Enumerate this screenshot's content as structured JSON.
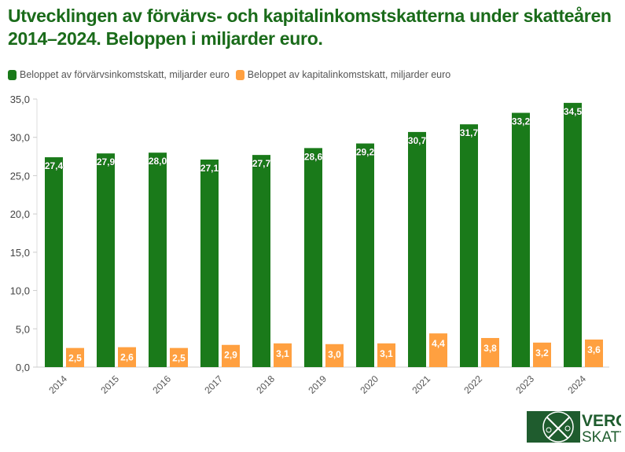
{
  "chart_data": {
    "type": "bar",
    "title": "Utvecklingen av förvärvs- och kapitalinkomstskatterna under skatteåren 2014–2024. Beloppen i miljarder euro.",
    "categories": [
      "2014",
      "2015",
      "2016",
      "2017",
      "2018",
      "2019",
      "2020",
      "2021",
      "2022",
      "2023",
      "2024"
    ],
    "series": [
      {
        "name": "Beloppet av förvärvsinkomstskatt, miljarder euro",
        "color": "#1a7a1a",
        "values": [
          27.4,
          27.9,
          28.0,
          27.1,
          27.7,
          28.6,
          29.2,
          30.7,
          31.7,
          33.2,
          34.5
        ]
      },
      {
        "name": "Beloppet av kapitalinkomstskatt, miljarder euro",
        "color": "#ffa040",
        "values": [
          2.5,
          2.6,
          2.5,
          2.9,
          3.1,
          3.0,
          3.1,
          4.4,
          3.8,
          3.2,
          3.6
        ]
      }
    ],
    "ylim": [
      0,
      35
    ],
    "yticks": [
      "0,0",
      "5,0",
      "10,0",
      "15,0",
      "20,0",
      "25,0",
      "30,0",
      "35,0"
    ],
    "grid": false,
    "legend": "top-left"
  },
  "logo": {
    "line1": "VERO",
    "line2": "SKATT",
    "color": "#1f5c2e"
  }
}
